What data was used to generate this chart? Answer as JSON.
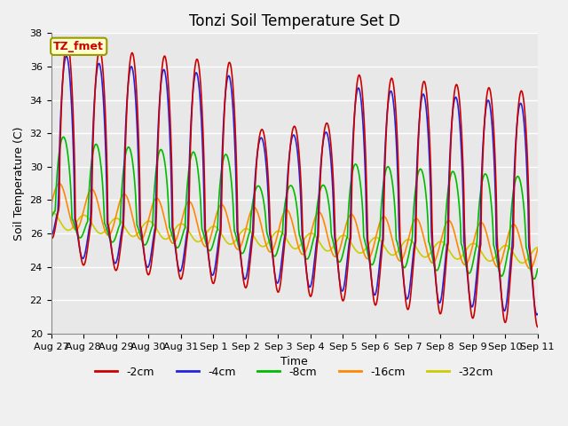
{
  "title": "Tonzi Soil Temperature Set D",
  "xlabel": "Time",
  "ylabel": "Soil Temperature (C)",
  "ylim": [
    20,
    38
  ],
  "yticks": [
    20,
    22,
    24,
    26,
    28,
    30,
    32,
    34,
    36,
    38
  ],
  "series_labels": [
    "-2cm",
    "-4cm",
    "-8cm",
    "-16cm",
    "-32cm"
  ],
  "series_colors": [
    "#cc0000",
    "#2222dd",
    "#00bb00",
    "#ff8800",
    "#cccc00"
  ],
  "series_linewidths": [
    1.2,
    1.2,
    1.2,
    1.2,
    1.2
  ],
  "background_color": "#f0f0f0",
  "plot_bg_color": "#e8e8e8",
  "annotation_text": "TZ_fmet",
  "annotation_bg": "#ffffcc",
  "annotation_border": "#999900",
  "annotation_text_color": "#cc0000",
  "title_fontsize": 12,
  "label_fontsize": 9,
  "tick_fontsize": 8,
  "legend_fontsize": 9,
  "n_points": 720,
  "t_start": 0,
  "t_end": 15,
  "x_tick_labels": [
    "Aug 27",
    "Aug 28",
    "Aug 29",
    "Aug 30",
    "Aug 31",
    "Sep 1",
    "Sep 2",
    "Sep 3",
    "Sep 4",
    "Sep 5",
    "Sep 6",
    "Sep 7",
    "Sep 8",
    "Sep 9",
    "Sep 10",
    "Sep 11"
  ],
  "x_tick_positions": [
    0,
    1,
    2,
    3,
    4,
    5,
    6,
    7,
    8,
    9,
    10,
    11,
    12,
    13,
    14,
    15
  ]
}
